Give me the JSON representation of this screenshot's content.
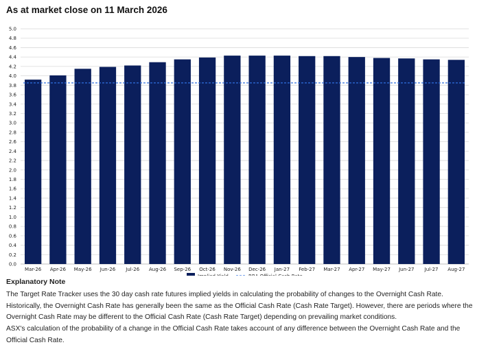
{
  "title": "As at market close on 11 March 2026",
  "chart_data": {
    "type": "bar",
    "categories": [
      "Mar-26",
      "Apr-26",
      "May-26",
      "Jun-26",
      "Jul-26",
      "Aug-26",
      "Sep-26",
      "Oct-26",
      "Nov-26",
      "Dec-26",
      "Jan-27",
      "Feb-27",
      "Mar-27",
      "Apr-27",
      "May-27",
      "Jun-27",
      "Jul-27",
      "Aug-27"
    ],
    "series": [
      {
        "name": "Implied Yield",
        "type": "bar",
        "color": "#0b1f5c",
        "values": [
          3.92,
          4.01,
          4.15,
          4.19,
          4.22,
          4.29,
          4.35,
          4.39,
          4.43,
          4.43,
          4.43,
          4.42,
          4.42,
          4.4,
          4.38,
          4.37,
          4.35,
          4.34
        ]
      },
      {
        "name": "RBA Official Cash Rate",
        "type": "line",
        "style": "dashed",
        "color": "#2f6fe0",
        "values": [
          3.85,
          3.85,
          3.85,
          3.85,
          3.85,
          3.85,
          3.85,
          3.85,
          3.85,
          3.85,
          3.85,
          3.85,
          3.85,
          3.85,
          3.85,
          3.85,
          3.85,
          3.85
        ]
      }
    ],
    "yticks": [
      "0.0",
      "0.2",
      "0.4",
      "0.6",
      "0.8",
      "1.0",
      "1.2",
      "1.4",
      "1.6",
      "1.8",
      "2.0",
      "2.2",
      "2.4",
      "2.6",
      "2.8",
      "3.0",
      "3.2",
      "3.4",
      "3.6",
      "3.8",
      "4.0",
      "4.2",
      "4.4",
      "4.6",
      "4.8",
      "5.0"
    ],
    "ylim": [
      0,
      5.0
    ],
    "grid": true,
    "legend_position": "bottom-center"
  },
  "note": {
    "heading": "Explanatory Note",
    "p1": "The Target Rate Tracker uses the 30 day cash rate futures implied yields in calculating the probability of changes to the Overnight Cash Rate. Historically, the Overnight Cash Rate has generally been the same as the Official Cash Rate (Cash Rate Target). However, there are periods where the Overnight Cash Rate may be different to the Official Cash Rate (Cash Rate Target) depending on prevailing market conditions.",
    "p2": "ASX's calculation of the probability of a change in the Official Cash Rate takes account of any difference between the Overnight Cash Rate and the Official Cash Rate."
  }
}
